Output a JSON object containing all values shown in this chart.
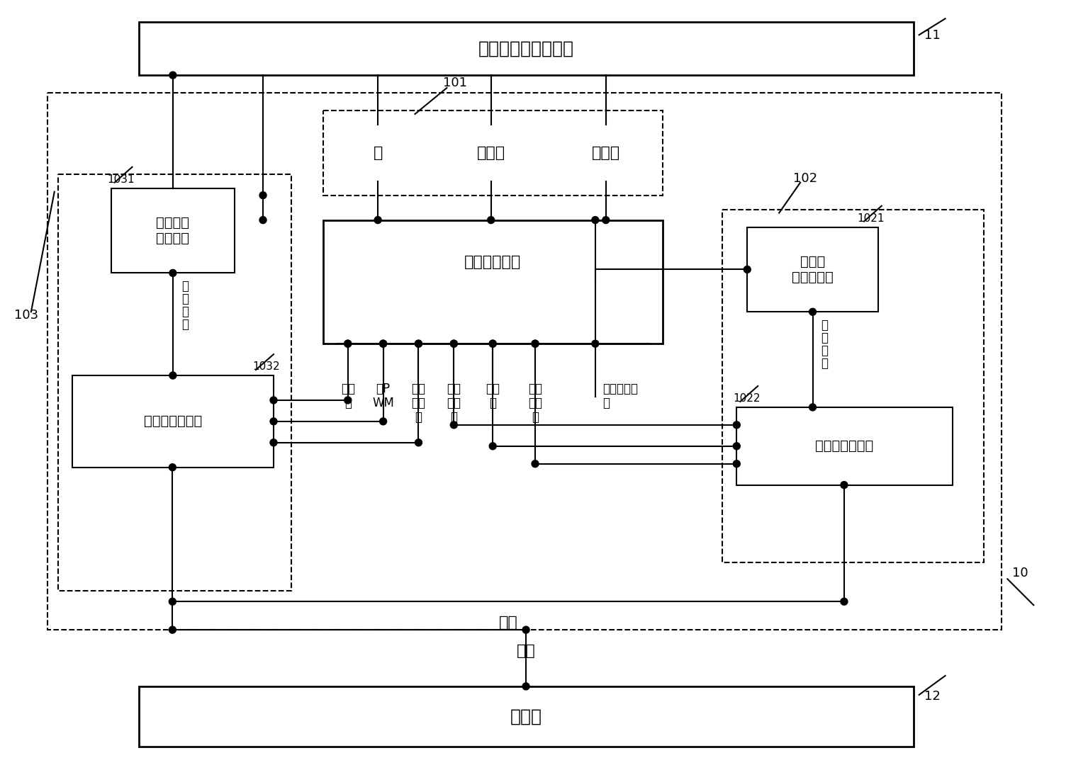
{
  "bg_color": "#ffffff",
  "lc": "#000000",
  "figsize": [
    15.35,
    10.87
  ],
  "dpi": 100,
  "labels": {
    "box11": "无创血压气路及袖带",
    "box12": "上位机",
    "box_pump": "泵",
    "box_mvalve": "测量阀",
    "box_svalve": "安全阀",
    "box_pump_ctrl": "泵阀控制电路",
    "box_main_sensor": "主压力传\n感器电路",
    "box_main_mcu": "主微处理器电路",
    "box_slave_sensor": "从压力\n传感器电路",
    "box_slave_mcu": "从微处理器电路",
    "lbl_pump_ctrl": "泵控\n制",
    "lbl_pump_pwm": "泵P\nWM",
    "lbl_mvalve_ctrl": "测量\n阀控\n制",
    "lbl_svalve_ctrl": "安全\n阀控\n制",
    "lbl_pump_ctrl2": "泵控\n制",
    "lbl_svalve_ctrl2": "安全\n阀控\n制",
    "lbl_volt_mon": "泵阀电压监\n测",
    "lbl_cuff1": "袖\n带\n压\n力",
    "lbl_cuff2": "袖\n带\n压\n力",
    "lbl_comm1": "通讯",
    "lbl_comm2": "通讯",
    "n11": "11",
    "n10": "10",
    "n12": "12",
    "n101": "101",
    "n102": "102",
    "n103": "103",
    "n1021": "1021",
    "n1022": "1022",
    "n1031": "1031",
    "n1032": "1032"
  }
}
